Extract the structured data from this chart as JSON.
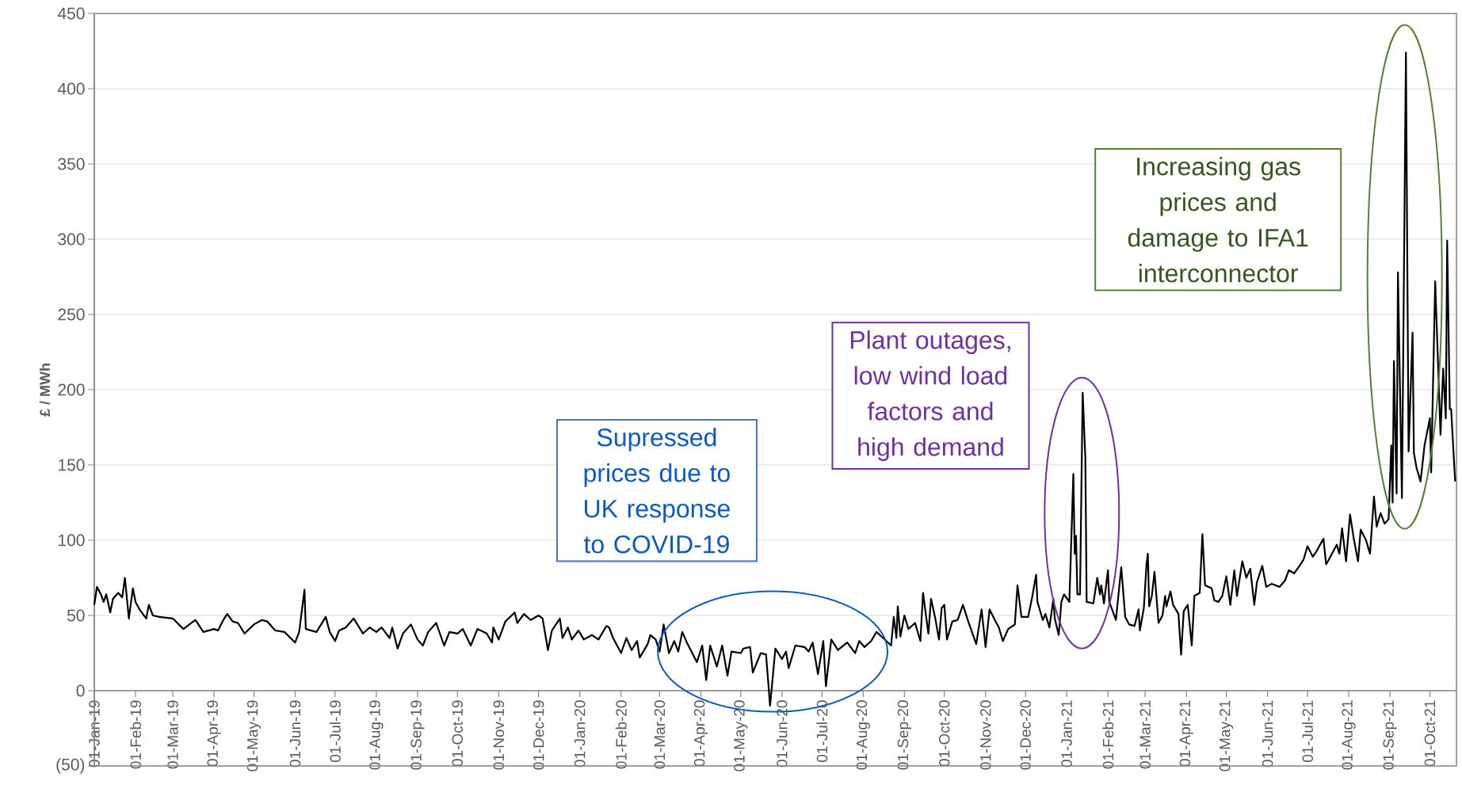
{
  "chart_data": {
    "type": "line",
    "ylabel": "£ / MWh",
    "color": "#000000",
    "line_style": "solid",
    "grid": "y",
    "xlim": [
      "2019-01-01",
      "2021-10-21"
    ],
    "ylim": [
      -50,
      450
    ],
    "yticks": [
      {
        "value": -50,
        "label": "(50)"
      },
      0,
      50,
      100,
      150,
      200,
      250,
      300,
      350,
      400,
      450
    ],
    "xticks": [
      {
        "value": "2019-01-01",
        "label": "01-Jan-19"
      },
      {
        "value": "2019-02-01",
        "label": "01-Feb-19"
      },
      {
        "value": "2019-03-01",
        "label": "01-Mar-19"
      },
      {
        "value": "2019-04-01",
        "label": "01-Apr-19"
      },
      {
        "value": "2019-05-01",
        "label": "01-May-19"
      },
      {
        "value": "2019-06-01",
        "label": "01-Jun-19"
      },
      {
        "value": "2019-07-01",
        "label": "01-Jul-19"
      },
      {
        "value": "2019-08-01",
        "label": "01-Aug-19"
      },
      {
        "value": "2019-09-01",
        "label": "01-Sep-19"
      },
      {
        "value": "2019-10-01",
        "label": "01-Oct-19"
      },
      {
        "value": "2019-11-01",
        "label": "01-Nov-19"
      },
      {
        "value": "2019-12-01",
        "label": "01-Dec-19"
      },
      {
        "value": "2020-01-01",
        "label": "01-Jan-20"
      },
      {
        "value": "2020-02-01",
        "label": "01-Feb-20"
      },
      {
        "value": "2020-03-01",
        "label": "01-Mar-20"
      },
      {
        "value": "2020-04-01",
        "label": "01-Apr-20"
      },
      {
        "value": "2020-05-01",
        "label": "01-May-20"
      },
      {
        "value": "2020-06-01",
        "label": "01-Jun-20"
      },
      {
        "value": "2020-07-01",
        "label": "01-Jul-20"
      },
      {
        "value": "2020-08-01",
        "label": "01-Aug-20"
      },
      {
        "value": "2020-09-01",
        "label": "01-Sep-20"
      },
      {
        "value": "2020-10-01",
        "label": "01-Oct-20"
      },
      {
        "value": "2020-11-01",
        "label": "01-Nov-20"
      },
      {
        "value": "2020-12-01",
        "label": "01-Dec-20"
      },
      {
        "value": "2021-01-01",
        "label": "01-Jan-21"
      },
      {
        "value": "2021-02-01",
        "label": "01-Feb-21"
      },
      {
        "value": "2021-03-01",
        "label": "01-Mar-21"
      },
      {
        "value": "2021-04-01",
        "label": "01-Apr-21"
      },
      {
        "value": "2021-05-01",
        "label": "01-May-21"
      },
      {
        "value": "2021-06-01",
        "label": "01-Jun-21"
      },
      {
        "value": "2021-07-01",
        "label": "01-Jul-21"
      },
      {
        "value": "2021-08-01",
        "label": "01-Aug-21"
      },
      {
        "value": "2021-09-01",
        "label": "01-Sep-21"
      },
      {
        "value": "2021-10-01",
        "label": "01-Oct-21"
      }
    ],
    "annotations": [
      "Supressed prices due to UK response to COVID-19",
      "Plant outages, low wind load factors and high demand",
      "Increasing gas prices and damage to IFA1 interconnector"
    ],
    "x": [
      "2019-01-01",
      "2019-01-03",
      "2019-01-06",
      "2019-01-08",
      "2019-01-10",
      "2019-01-13",
      "2019-01-15",
      "2019-01-19",
      "2019-01-22",
      "2019-01-24",
      "2019-01-27",
      "2019-01-30",
      "2019-02-01",
      "2019-02-04",
      "2019-02-09",
      "2019-02-11",
      "2019-02-14",
      "2019-02-19",
      "2019-03-01",
      "2019-03-09",
      "2019-03-18",
      "2019-03-24",
      "2019-04-01",
      "2019-04-04",
      "2019-04-08",
      "2019-04-11",
      "2019-04-15",
      "2019-04-19",
      "2019-04-24",
      "2019-05-01",
      "2019-05-07",
      "2019-05-11",
      "2019-05-17",
      "2019-05-24",
      "2019-06-01",
      "2019-06-04",
      "2019-06-08",
      "2019-06-09",
      "2019-06-17",
      "2019-06-24",
      "2019-06-27",
      "2019-07-01",
      "2019-07-04",
      "2019-07-09",
      "2019-07-15",
      "2019-07-22",
      "2019-07-27",
      "2019-08-01",
      "2019-08-05",
      "2019-08-11",
      "2019-08-13",
      "2019-08-17",
      "2019-08-21",
      "2019-08-27",
      "2019-09-01",
      "2019-09-05",
      "2019-09-09",
      "2019-09-15",
      "2019-09-21",
      "2019-09-25",
      "2019-10-01",
      "2019-10-05",
      "2019-10-11",
      "2019-10-16",
      "2019-10-23",
      "2019-10-27",
      "2019-10-28",
      "2019-11-01",
      "2019-11-06",
      "2019-11-13",
      "2019-11-15",
      "2019-11-20",
      "2019-11-25",
      "2019-12-01",
      "2019-12-04",
      "2019-12-08",
      "2019-12-11",
      "2019-12-17",
      "2019-12-19",
      "2019-12-23",
      "2019-12-26",
      "2019-12-31",
      "2020-01-04",
      "2020-01-10",
      "2020-01-15",
      "2020-01-21",
      "2020-01-23",
      "2020-01-26",
      "2020-02-01",
      "2020-02-05",
      "2020-02-09",
      "2020-02-13",
      "2020-02-15",
      "2020-02-21",
      "2020-02-23",
      "2020-02-27",
      "2020-03-01",
      "2020-03-04",
      "2020-03-08",
      "2020-03-12",
      "2020-03-15",
      "2020-03-18",
      "2020-03-22",
      "2020-03-29",
      "2020-04-02",
      "2020-04-05",
      "2020-04-08",
      "2020-04-13",
      "2020-04-17",
      "2020-04-21",
      "2020-04-24",
      "2020-05-01",
      "2020-05-03",
      "2020-05-08",
      "2020-05-10",
      "2020-05-16",
      "2020-05-20",
      "2020-05-23",
      "2020-05-27",
      "2020-06-01",
      "2020-06-04",
      "2020-06-06",
      "2020-06-11",
      "2020-06-18",
      "2020-06-21",
      "2020-06-24",
      "2020-06-28",
      "2020-07-02",
      "2020-07-04",
      "2020-07-08",
      "2020-07-13",
      "2020-07-20",
      "2020-07-26",
      "2020-07-29",
      "2020-08-02",
      "2020-08-07",
      "2020-08-11",
      "2020-08-16",
      "2020-08-22",
      "2020-08-24",
      "2020-08-26",
      "2020-08-27",
      "2020-08-29",
      "2020-09-01",
      "2020-09-04",
      "2020-09-09",
      "2020-09-13",
      "2020-09-15",
      "2020-09-19",
      "2020-09-21",
      "2020-09-24",
      "2020-09-27",
      "2020-09-29",
      "2020-10-01",
      "2020-10-03",
      "2020-10-07",
      "2020-10-11",
      "2020-10-15",
      "2020-10-19",
      "2020-10-25",
      "2020-10-29",
      "2020-11-01",
      "2020-11-04",
      "2020-11-08",
      "2020-11-11",
      "2020-11-14",
      "2020-11-18",
      "2020-11-23",
      "2020-11-25",
      "2020-11-28",
      "2020-12-03",
      "2020-12-06",
      "2020-12-09",
      "2020-12-10",
      "2020-12-14",
      "2020-12-16",
      "2020-12-19",
      "2020-12-22",
      "2020-12-23",
      "2020-12-26",
      "2020-12-28",
      "2020-12-30",
      "2021-01-03",
      "2021-01-06",
      "2021-01-07",
      "2021-01-08",
      "2021-01-09",
      "2021-01-11",
      "2021-01-13",
      "2021-01-15",
      "2021-01-16",
      "2021-01-21",
      "2021-01-24",
      "2021-01-26",
      "2021-01-27",
      "2021-01-29",
      "2021-02-01",
      "2021-02-02",
      "2021-02-07",
      "2021-02-11",
      "2021-02-14",
      "2021-02-17",
      "2021-02-21",
      "2021-02-24",
      "2021-02-25",
      "2021-02-28",
      "2021-03-02",
      "2021-03-03",
      "2021-03-04",
      "2021-03-06",
      "2021-03-08",
      "2021-03-11",
      "2021-03-14",
      "2021-03-16",
      "2021-03-17",
      "2021-03-20",
      "2021-03-22",
      "2021-03-26",
      "2021-03-28",
      "2021-03-30",
      "2021-04-02",
      "2021-04-05",
      "2021-04-07",
      "2021-04-11",
      "2021-04-13",
      "2021-04-15",
      "2021-04-20",
      "2021-04-22",
      "2021-04-25",
      "2021-04-28",
      "2021-05-01",
      "2021-05-04",
      "2021-05-07",
      "2021-05-09",
      "2021-05-13",
      "2021-05-16",
      "2021-05-19",
      "2021-05-22",
      "2021-05-24",
      "2021-05-28",
      "2021-05-31",
      "2021-06-04",
      "2021-06-10",
      "2021-06-14",
      "2021-06-17",
      "2021-06-21",
      "2021-06-25",
      "2021-06-28",
      "2021-07-01",
      "2021-07-05",
      "2021-07-08",
      "2021-07-13",
      "2021-07-15",
      "2021-07-17",
      "2021-07-23",
      "2021-07-25",
      "2021-07-27",
      "2021-07-30",
      "2021-08-02",
      "2021-08-05",
      "2021-08-08",
      "2021-08-10",
      "2021-08-14",
      "2021-08-17",
      "2021-08-20",
      "2021-08-22",
      "2021-08-25",
      "2021-08-28",
      "2021-08-31",
      "2021-09-02",
      "2021-09-03",
      "2021-09-04",
      "2021-09-06",
      "2021-09-07",
      "2021-09-10",
      "2021-09-13",
      "2021-09-15",
      "2021-09-18",
      "2021-09-19",
      "2021-09-21",
      "2021-09-24",
      "2021-09-27",
      "2021-10-01",
      "2021-10-02",
      "2021-10-05",
      "2021-10-09",
      "2021-10-11",
      "2021-10-13",
      "2021-10-14",
      "2021-10-16",
      "2021-10-17",
      "2021-10-20"
    ],
    "values": [
      57,
      69,
      64,
      59,
      64,
      52,
      61,
      65,
      62,
      75,
      48,
      68,
      59,
      54,
      48,
      57,
      50,
      49,
      48,
      41,
      47,
      39,
      41,
      40,
      47,
      51,
      46,
      45,
      38,
      44,
      47,
      46,
      40,
      39,
      32,
      39,
      67,
      41,
      39,
      49,
      39,
      33,
      40,
      42,
      48,
      38,
      42,
      39,
      42,
      35,
      42,
      28,
      38,
      44,
      34,
      30,
      39,
      45,
      30,
      39,
      38,
      41,
      30,
      41,
      38,
      32,
      42,
      34,
      46,
      52,
      45,
      51,
      47,
      50,
      48,
      27,
      40,
      48,
      35,
      42,
      34,
      40,
      34,
      37,
      34,
      43,
      42,
      35,
      25,
      35,
      27,
      33,
      22,
      31,
      37,
      34,
      26,
      44,
      25,
      33,
      26,
      39,
      31,
      19,
      30,
      7,
      30,
      16,
      30,
      10,
      26,
      25,
      28,
      29,
      12,
      25,
      24,
      -10,
      28,
      21,
      26,
      15,
      30,
      29,
      26,
      32,
      11,
      33,
      3,
      34,
      27,
      32,
      25,
      33,
      29,
      33,
      39,
      35,
      30,
      49,
      35,
      56,
      36,
      50,
      41,
      45,
      33,
      65,
      38,
      61,
      49,
      34,
      55,
      57,
      34,
      46,
      47,
      57,
      46,
      31,
      54,
      29,
      54,
      47,
      42,
      33,
      41,
      44,
      70,
      49,
      49,
      62,
      77,
      59,
      47,
      51,
      42,
      61,
      48,
      37,
      59,
      64,
      59,
      144,
      91,
      103,
      64,
      64,
      198,
      155,
      59,
      58,
      75,
      64,
      70,
      58,
      80,
      59,
      47,
      82,
      49,
      44,
      43,
      54,
      40,
      55,
      84,
      91,
      56,
      63,
      79,
      45,
      50,
      63,
      56,
      66,
      57,
      51,
      24,
      53,
      57,
      30,
      63,
      65,
      104,
      70,
      68,
      60,
      59,
      63,
      76,
      57,
      80,
      63,
      86,
      75,
      81,
      57,
      72,
      83,
      69,
      71,
      69,
      73,
      80,
      78,
      83,
      87,
      96,
      89,
      93,
      101,
      84,
      87,
      97,
      91,
      108,
      86,
      117,
      100,
      86,
      107,
      100,
      91,
      129,
      109,
      118,
      111,
      114,
      163,
      125,
      219,
      131,
      278,
      128,
      424,
      159,
      238,
      158,
      148,
      139,
      163,
      181,
      145,
      272,
      170,
      214,
      181,
      299,
      187,
      187,
      139
    ]
  }
}
